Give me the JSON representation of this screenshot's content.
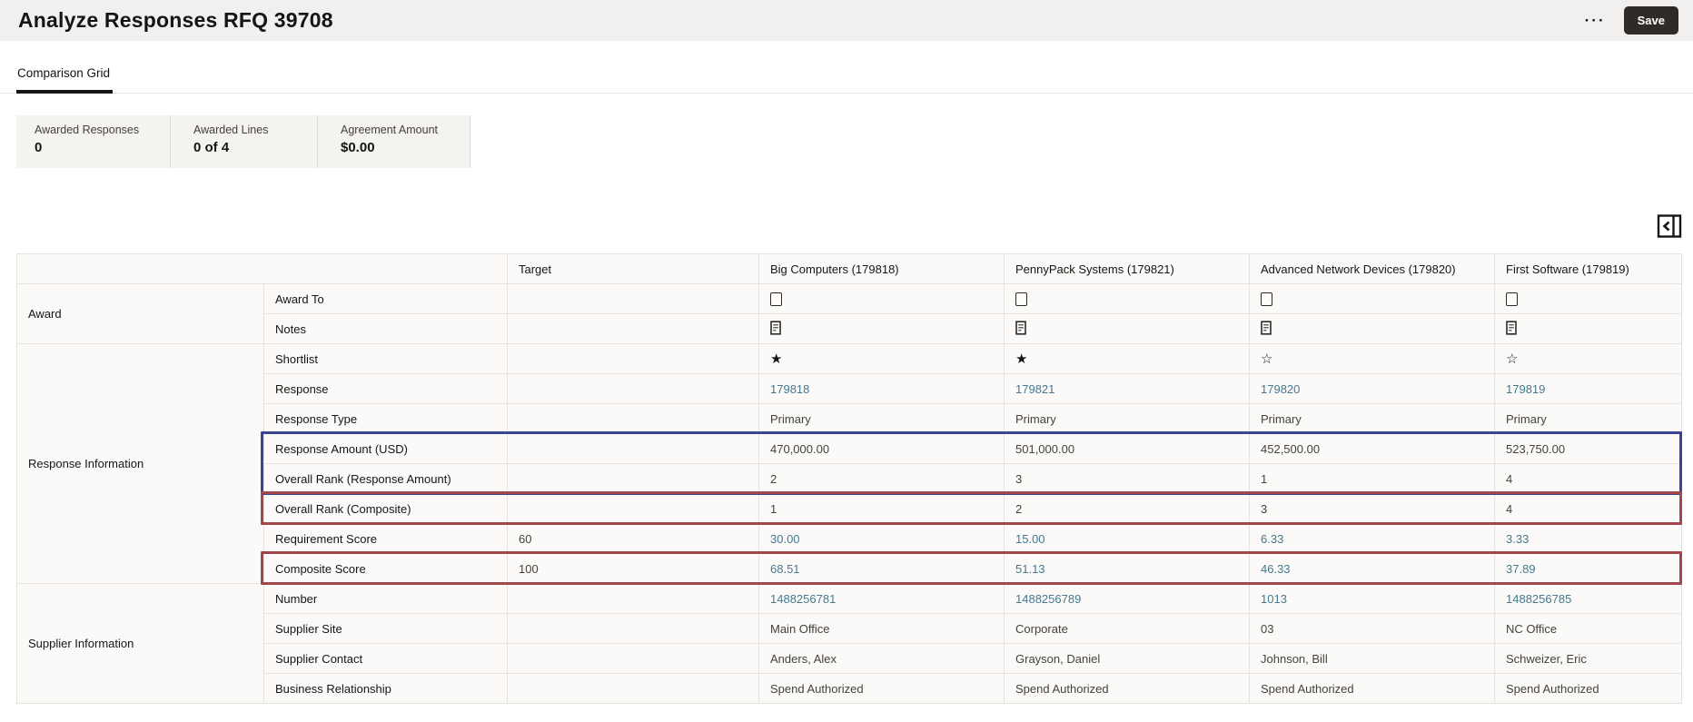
{
  "header": {
    "title": "Analyze Responses RFQ 39708",
    "actions": {
      "more_label": "···",
      "save_label": "Save"
    }
  },
  "tabs": [
    {
      "label": "Comparison Grid",
      "active": true
    }
  ],
  "summary_stats": [
    {
      "label": "Awarded Responses",
      "value": "0"
    },
    {
      "label": "Awarded Lines",
      "value": "0 of 4"
    },
    {
      "label": "Agreement Amount",
      "value": "$0.00"
    }
  ],
  "comparison_grid": {
    "column_headers": {
      "target": "Target",
      "suppliers": [
        "Big Computers (179818)",
        "PennyPack Systems (179821)",
        "Advanced Network Devices (179820)",
        "First Software (179819)"
      ]
    },
    "groups": [
      {
        "name": "Award",
        "rows": [
          {
            "label": "Award To",
            "type": "checkbox",
            "target": "",
            "values": [
              "unchecked",
              "unchecked",
              "unchecked",
              "unchecked"
            ]
          },
          {
            "label": "Notes",
            "type": "note",
            "target": "",
            "values": [
              "note",
              "note",
              "note",
              "note"
            ]
          }
        ]
      },
      {
        "name": "Response Information",
        "rows": [
          {
            "label": "Shortlist",
            "type": "star",
            "target": "",
            "values": [
              "filled",
              "filled",
              "outline",
              "outline"
            ]
          },
          {
            "label": "Response",
            "type": "link",
            "target": "",
            "values": [
              "179818",
              "179821",
              "179820",
              "179819"
            ]
          },
          {
            "label": "Response Type",
            "type": "text",
            "target": "",
            "values": [
              "Primary",
              "Primary",
              "Primary",
              "Primary"
            ]
          },
          {
            "label": "Response Amount (USD)",
            "type": "text",
            "target": "",
            "values": [
              "470,000.00",
              "501,000.00",
              "452,500.00",
              "523,750.00"
            ],
            "highlight": "blue-top"
          },
          {
            "label": "Overall Rank (Response Amount)",
            "type": "text",
            "target": "",
            "values": [
              "2",
              "3",
              "1",
              "4"
            ],
            "highlight": "blue-bottom"
          },
          {
            "label": "Overall Rank (Composite)",
            "type": "text",
            "target": "",
            "values": [
              "1",
              "2",
              "3",
              "4"
            ],
            "highlight": "red"
          },
          {
            "label": "Requirement Score",
            "type": "link",
            "target": "60",
            "values": [
              "30.00",
              "15.00",
              "6.33",
              "3.33"
            ]
          },
          {
            "label": "Composite Score",
            "type": "link",
            "target": "100",
            "values": [
              "68.51",
              "51.13",
              "46.33",
              "37.89"
            ],
            "highlight": "red"
          }
        ]
      },
      {
        "name": "Supplier Information",
        "rows": [
          {
            "label": "Number",
            "type": "link",
            "target": "",
            "values": [
              "1488256781",
              "1488256789",
              "1013",
              "1488256785"
            ]
          },
          {
            "label": "Supplier Site",
            "type": "text",
            "target": "",
            "values": [
              "Main Office",
              "Corporate",
              "03",
              "NC Office"
            ]
          },
          {
            "label": "Supplier Contact",
            "type": "text",
            "target": "",
            "values": [
              "Anders, Alex",
              "Grayson, Daniel",
              "Johnson, Bill",
              "Schweizer, Eric"
            ]
          },
          {
            "label": "Business Relationship",
            "type": "text",
            "target": "",
            "values": [
              "Spend Authorized",
              "Spend Authorized",
              "Spend Authorized",
              "Spend Authorized"
            ]
          }
        ]
      }
    ],
    "annotations": {
      "blue_box_color": "#3b4394",
      "red_box_color": "#a5454c"
    }
  },
  "colors": {
    "link": "#44798f",
    "header_band": "#f2f0ee",
    "button_dark": "#2f2c28"
  }
}
